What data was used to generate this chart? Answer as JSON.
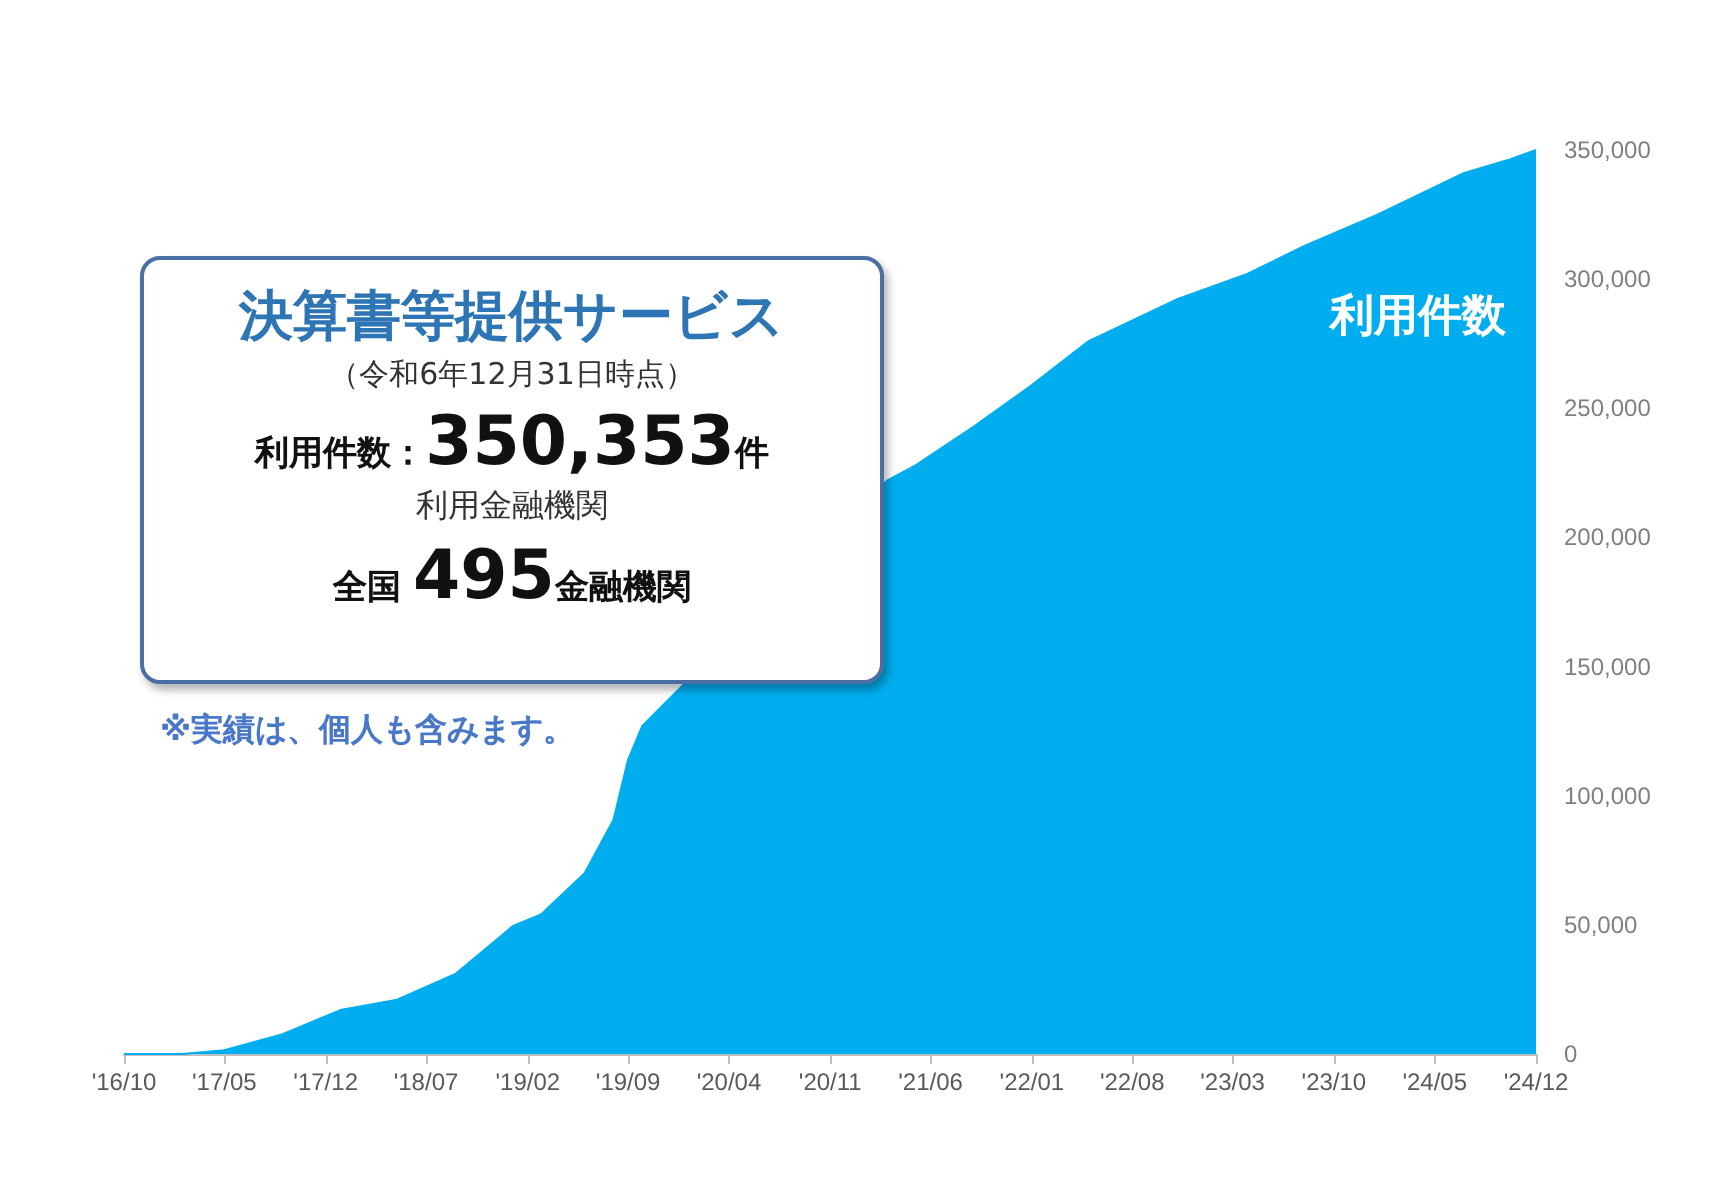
{
  "chart_data": {
    "type": "area",
    "title": "決算書等提供サービス",
    "subtitle": "（令和6年12月31日時点）",
    "annotations": [
      "利用件数：350,353件",
      "利用金融機関",
      "全国 495金融機関",
      "※実績は、個人も含みます。"
    ],
    "x": [
      "2016-10",
      "2017-02",
      "2017-05",
      "2017-09",
      "2018-01",
      "2018-05",
      "2018-09",
      "2019-01",
      "2019-03",
      "2019-06",
      "2019-08",
      "2019-09",
      "2019-10",
      "2019-12",
      "2020-07",
      "2021-03",
      "2021-05",
      "2021-09",
      "2022-01",
      "2022-05",
      "2022-11",
      "2023-04",
      "2023-08",
      "2024-01",
      "2024-04",
      "2024-07",
      "2024-10",
      "2024-12"
    ],
    "series": [
      {
        "name": "利用件数",
        "color": "#00aeef",
        "values": [
          0,
          0,
          1500,
          7700,
          17000,
          21000,
          31000,
          49600,
          54000,
          70000,
          90600,
          114000,
          127000,
          null,
          null,
          222000,
          228000,
          243000,
          259000,
          276000,
          292000,
          302000,
          313000,
          325000,
          333000,
          341000,
          346000,
          350000
        ]
      }
    ],
    "xlim": [
      "2016-10",
      "2024-12"
    ],
    "xticks": [
      {
        "value": "2016-10",
        "label": "'16/10"
      },
      {
        "value": "2017-05",
        "label": "'17/05"
      },
      {
        "value": "2017-12",
        "label": "'17/12"
      },
      {
        "value": "2018-07",
        "label": "'18/07"
      },
      {
        "value": "2019-02",
        "label": "'19/02"
      },
      {
        "value": "2019-09",
        "label": "'19/09"
      },
      {
        "value": "2020-04",
        "label": "'20/04"
      },
      {
        "value": "2020-11",
        "label": "'20/11"
      },
      {
        "value": "2021-06",
        "label": "'21/06"
      },
      {
        "value": "2022-01",
        "label": "'22/01"
      },
      {
        "value": "2022-08",
        "label": "'22/08"
      },
      {
        "value": "2023-03",
        "label": "'23/03"
      },
      {
        "value": "2023-10",
        "label": "'23/10"
      },
      {
        "value": "2024-05",
        "label": "'24/05"
      },
      {
        "value": "2024-12",
        "label": "'24/12"
      }
    ],
    "ylim": [
      0,
      350000
    ],
    "yticks": [
      {
        "value": 0,
        "label": "0"
      },
      {
        "value": 50000,
        "label": "50,000"
      },
      {
        "value": 100000,
        "label": "100,000"
      },
      {
        "value": 150000,
        "label": "150,000"
      },
      {
        "value": 200000,
        "label": "200,000"
      },
      {
        "value": 250000,
        "label": "250,000"
      },
      {
        "value": 300000,
        "label": "300,000"
      },
      {
        "value": 350000,
        "label": "350,000"
      }
    ],
    "grid": false,
    "legend": false
  }
}
